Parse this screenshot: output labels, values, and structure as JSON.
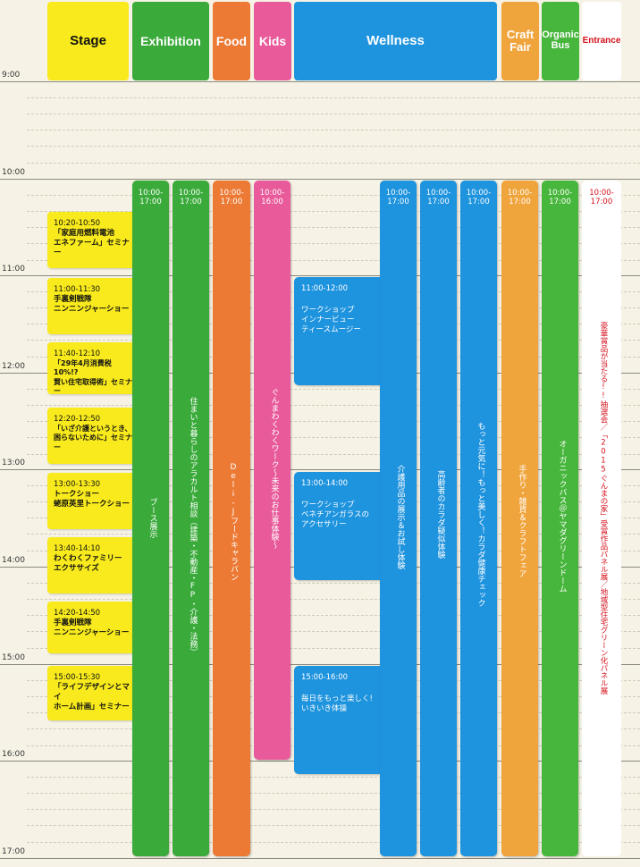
{
  "headers": {
    "stage": "Stage",
    "exhibition": "Exhibition",
    "food": "Food",
    "kids": "Kids",
    "wellness": "Wellness",
    "craft": "Craft\nFair",
    "organic": "Organic\nBus",
    "entrance": "Entrance"
  },
  "hours": [
    "9:00",
    "10:00",
    "11:00",
    "12:00",
    "13:00",
    "14:00",
    "15:00",
    "16:00",
    "17:00"
  ],
  "stage_events": [
    {
      "time": "10:20-10:50",
      "desc": "「家庭用燃料電池\nエネファーム」セミナー"
    },
    {
      "time": "11:00-11:30",
      "desc": "手裏剣戦隊\nニンニンジャーショー"
    },
    {
      "time": "11:40-12:10",
      "desc": "「29年4月消費税10%!?\n賢い住宅取得術」セミナー"
    },
    {
      "time": "12:20-12:50",
      "desc": "「いざ介護というとき、\n困らないために」セミナー"
    },
    {
      "time": "13:00-13:30",
      "desc": "トークショー\n蛯原英里トークショー"
    },
    {
      "time": "13:40-14:10",
      "desc": "わくわくファミリー\nエクササイズ"
    },
    {
      "time": "14:20-14:50",
      "desc": "手裏剣戦隊\nニンニンジャーショー"
    },
    {
      "time": "15:00-15:30",
      "desc": "「ライフデザインとマイ\nホーム計画」セミナー"
    }
  ],
  "bars": {
    "exhibition1": {
      "time": "10:00-\n17:00",
      "text": "ブース展示"
    },
    "exhibition2": {
      "time": "10:00-\n17:00",
      "text": "住まいと暮らしのアラカルト相談（建築・不動産・FP・介護・法務）"
    },
    "food": {
      "time": "10:00-\n17:00",
      "text": "Deli-Jフードキャラバン"
    },
    "kids": {
      "time": "10:00-\n16:00",
      "text": "ぐんまわくわくワーク〜未来のお仕事体験〜"
    },
    "wellness1": {
      "time": "10:00-\n17:00",
      "text": "介護用品の展示＆お試し体験"
    },
    "wellness2": {
      "time": "10:00-\n17:00",
      "text": "高齢者のカラダ疑似体験"
    },
    "wellness3": {
      "time": "10:00-\n17:00",
      "text": "もっと元気に！もっと美しく！カラダ健康チェック"
    },
    "craft": {
      "time": "10:00-\n17:00",
      "text": "手作り・雑貨＆クラフトフェア"
    },
    "organic": {
      "time": "10:00-\n17:00",
      "text": "オーガニックバス＠ヤマダグリーンドーム"
    },
    "entrance": {
      "time": "10:00-\n17:00",
      "text": "豪華賞品が当たる!!抽選会／「2015ぐんまの家」受賞作品パネル展／地域型住宅グリーン化パネル展"
    }
  },
  "workshops": [
    {
      "time": "11:00-12:00",
      "desc": "ワークショップ\nインナービュー\nティースムージー"
    },
    {
      "time": "13:00-14:00",
      "desc": "ワークショップ\nベネチアンガラスの\nアクセサリー"
    },
    {
      "time": "15:00-16:00",
      "desc": "毎日をもっと楽しく!\nいきいき体操"
    }
  ],
  "colors": {
    "stage": "#f8ea1c",
    "exhibition": "#3aaa3a",
    "food": "#ec7a35",
    "kids": "#e85a9a",
    "wellness": "#1e93de",
    "craft": "#f0a43c",
    "organic": "#47b63c",
    "entrance_text": "#d4111c"
  }
}
